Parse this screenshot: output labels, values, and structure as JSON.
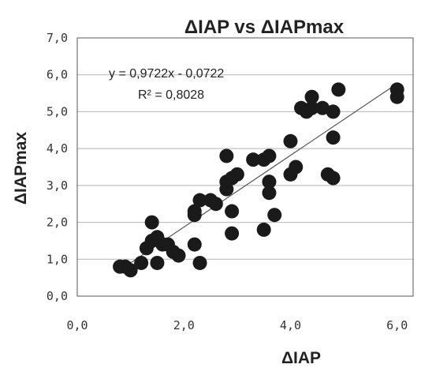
{
  "chart_data": {
    "type": "scatter",
    "title": "ΔIAP vs ΔIAPmax",
    "xlabel": "ΔIAP",
    "ylabel": "ΔIAPmax",
    "xlim": [
      0,
      6.3
    ],
    "ylim": [
      0,
      7
    ],
    "x_ticks": [
      0,
      2,
      4,
      6
    ],
    "x_tick_labels": [
      "0,0",
      "2,0",
      "4,0",
      "6,0"
    ],
    "y_ticks": [
      0,
      1,
      2,
      3,
      4,
      5,
      6,
      7
    ],
    "y_tick_labels": [
      "0,0",
      "1,0",
      "2,0",
      "3,0",
      "4,0",
      "5,0",
      "6,0",
      "7,0"
    ],
    "grid": "horizontal",
    "legend": "none",
    "point_color": "#1a1a1a",
    "trendline": {
      "slope": 0.9722,
      "intercept": -0.0722,
      "x_range": [
        0.9,
        6.0
      ],
      "equation_label": "y = 0,9722x - 0,0722",
      "r2_label": "R² = 0,8028"
    },
    "points": [
      {
        "x": 0.8,
        "y": 0.8
      },
      {
        "x": 0.9,
        "y": 0.8
      },
      {
        "x": 1.0,
        "y": 0.7
      },
      {
        "x": 1.2,
        "y": 0.9
      },
      {
        "x": 1.3,
        "y": 1.3
      },
      {
        "x": 1.4,
        "y": 1.5
      },
      {
        "x": 1.4,
        "y": 2.0
      },
      {
        "x": 1.5,
        "y": 1.6
      },
      {
        "x": 1.5,
        "y": 0.9
      },
      {
        "x": 1.6,
        "y": 1.4
      },
      {
        "x": 1.7,
        "y": 1.4
      },
      {
        "x": 1.8,
        "y": 1.2
      },
      {
        "x": 1.9,
        "y": 1.1
      },
      {
        "x": 2.2,
        "y": 1.4
      },
      {
        "x": 2.2,
        "y": 2.2
      },
      {
        "x": 2.2,
        "y": 2.3
      },
      {
        "x": 2.3,
        "y": 2.6
      },
      {
        "x": 2.3,
        "y": 0.9
      },
      {
        "x": 2.5,
        "y": 2.6
      },
      {
        "x": 2.6,
        "y": 2.5
      },
      {
        "x": 2.8,
        "y": 3.8
      },
      {
        "x": 2.8,
        "y": 3.1
      },
      {
        "x": 2.8,
        "y": 2.9
      },
      {
        "x": 2.9,
        "y": 3.2
      },
      {
        "x": 2.9,
        "y": 2.3
      },
      {
        "x": 2.9,
        "y": 1.7
      },
      {
        "x": 3.0,
        "y": 3.3
      },
      {
        "x": 3.3,
        "y": 3.7
      },
      {
        "x": 3.5,
        "y": 3.7
      },
      {
        "x": 3.5,
        "y": 1.8
      },
      {
        "x": 3.6,
        "y": 3.8
      },
      {
        "x": 3.6,
        "y": 3.1
      },
      {
        "x": 3.6,
        "y": 2.8
      },
      {
        "x": 3.7,
        "y": 2.2
      },
      {
        "x": 4.0,
        "y": 4.2
      },
      {
        "x": 4.0,
        "y": 3.3
      },
      {
        "x": 4.1,
        "y": 3.5
      },
      {
        "x": 4.2,
        "y": 5.1
      },
      {
        "x": 4.3,
        "y": 5.0
      },
      {
        "x": 4.4,
        "y": 5.4
      },
      {
        "x": 4.4,
        "y": 5.1
      },
      {
        "x": 4.6,
        "y": 5.1
      },
      {
        "x": 4.7,
        "y": 3.3
      },
      {
        "x": 4.8,
        "y": 5.0
      },
      {
        "x": 4.8,
        "y": 4.3
      },
      {
        "x": 4.8,
        "y": 3.2
      },
      {
        "x": 4.9,
        "y": 5.6
      },
      {
        "x": 6.0,
        "y": 5.6
      },
      {
        "x": 6.0,
        "y": 5.4
      }
    ]
  }
}
